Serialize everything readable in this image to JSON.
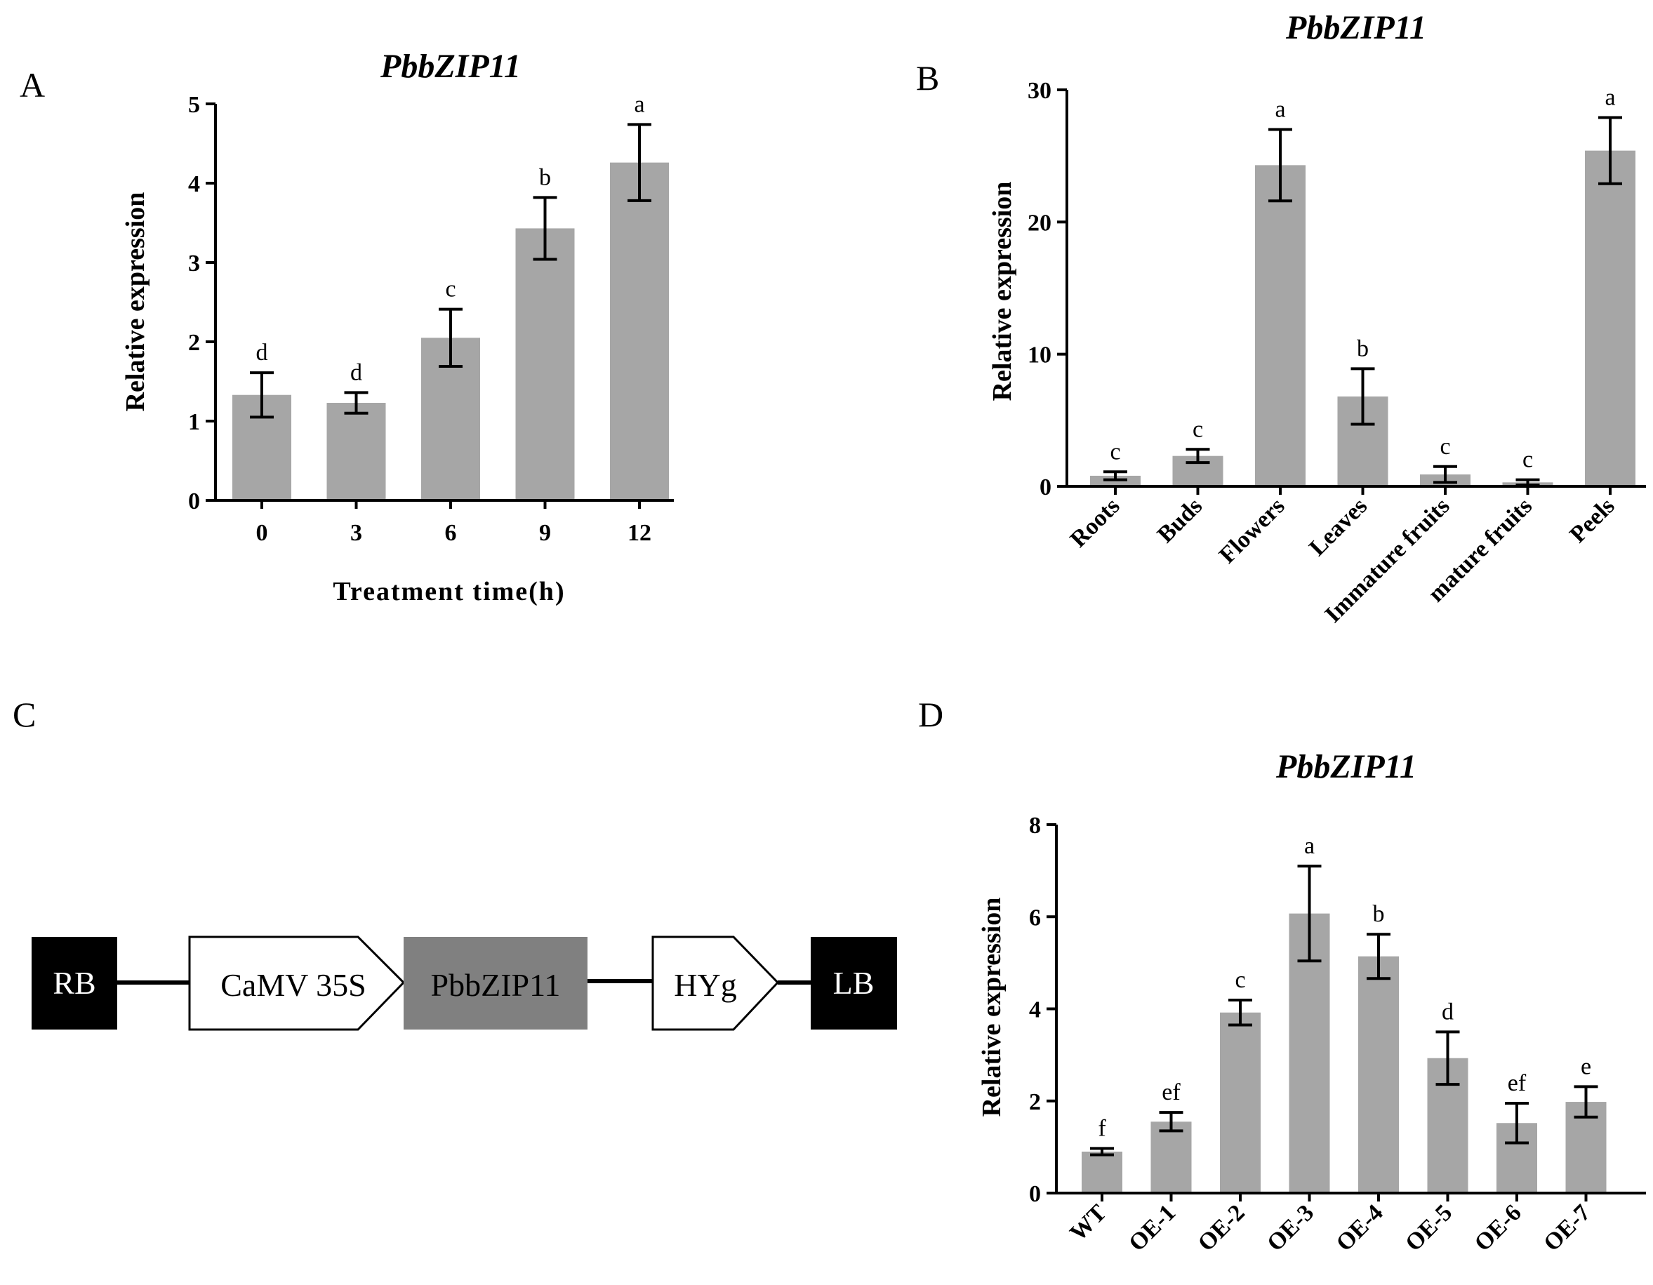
{
  "panels": {
    "a": "A",
    "b": "B",
    "c": "C",
    "d": "D"
  },
  "colors": {
    "bar": "#a6a6a6",
    "axis": "#000000",
    "box_dark": "#000000",
    "box_gene": "#808080",
    "box_light": "#ffffff"
  },
  "construct": {
    "rb": "RB",
    "promoter": "CaMV 35S",
    "gene": "PbbZIP11",
    "marker": "HYg",
    "lb": "LB"
  },
  "chart_data": [
    {
      "panel": "A",
      "type": "bar",
      "title": "PbbZIP11",
      "xlabel": "Treatment time(h)",
      "ylabel": "Relative expression",
      "categories": [
        "0",
        "3",
        "6",
        "9",
        "12"
      ],
      "values": [
        1.33,
        1.23,
        2.05,
        3.43,
        4.26
      ],
      "errors": [
        0.28,
        0.13,
        0.36,
        0.39,
        0.48
      ],
      "letters": [
        "d",
        "d",
        "c",
        "b",
        "a"
      ],
      "ylim": [
        0,
        5
      ],
      "yticks": [
        "0",
        "1",
        "2",
        "3",
        "4",
        "5"
      ]
    },
    {
      "panel": "B",
      "type": "bar",
      "title": "PbbZIP11",
      "xlabel": "",
      "ylabel": "Relative expression",
      "categories": [
        "Roots",
        "Buds",
        "Flowers",
        "Leaves",
        "Immature fruits",
        "mature fruits",
        "Peels"
      ],
      "values": [
        0.8,
        2.3,
        24.3,
        6.8,
        0.9,
        0.3,
        25.4
      ],
      "errors": [
        0.3,
        0.5,
        2.7,
        2.1,
        0.6,
        0.2,
        2.5
      ],
      "letters": [
        "c",
        "c",
        "a",
        "b",
        "c",
        "c",
        "a"
      ],
      "ylim": [
        0,
        30
      ],
      "yticks": [
        "0",
        "10",
        "20",
        "30"
      ]
    },
    {
      "panel": "D",
      "type": "bar",
      "title": "PbbZIP11",
      "xlabel": "",
      "ylabel": "Relative expression",
      "categories": [
        "WT",
        "OE-1",
        "OE-2",
        "OE-3",
        "OE-4",
        "OE-5",
        "OE-6",
        "OE-7"
      ],
      "values": [
        0.9,
        1.55,
        3.92,
        6.07,
        5.14,
        2.93,
        1.52,
        1.98
      ],
      "errors": [
        0.07,
        0.2,
        0.27,
        1.03,
        0.48,
        0.57,
        0.43,
        0.33
      ],
      "letters": [
        "f",
        "ef",
        "c",
        "a",
        "b",
        "d",
        "ef",
        "e"
      ],
      "ylim": [
        0,
        8
      ],
      "yticks": [
        "0",
        "2",
        "4",
        "6",
        "8"
      ]
    }
  ]
}
